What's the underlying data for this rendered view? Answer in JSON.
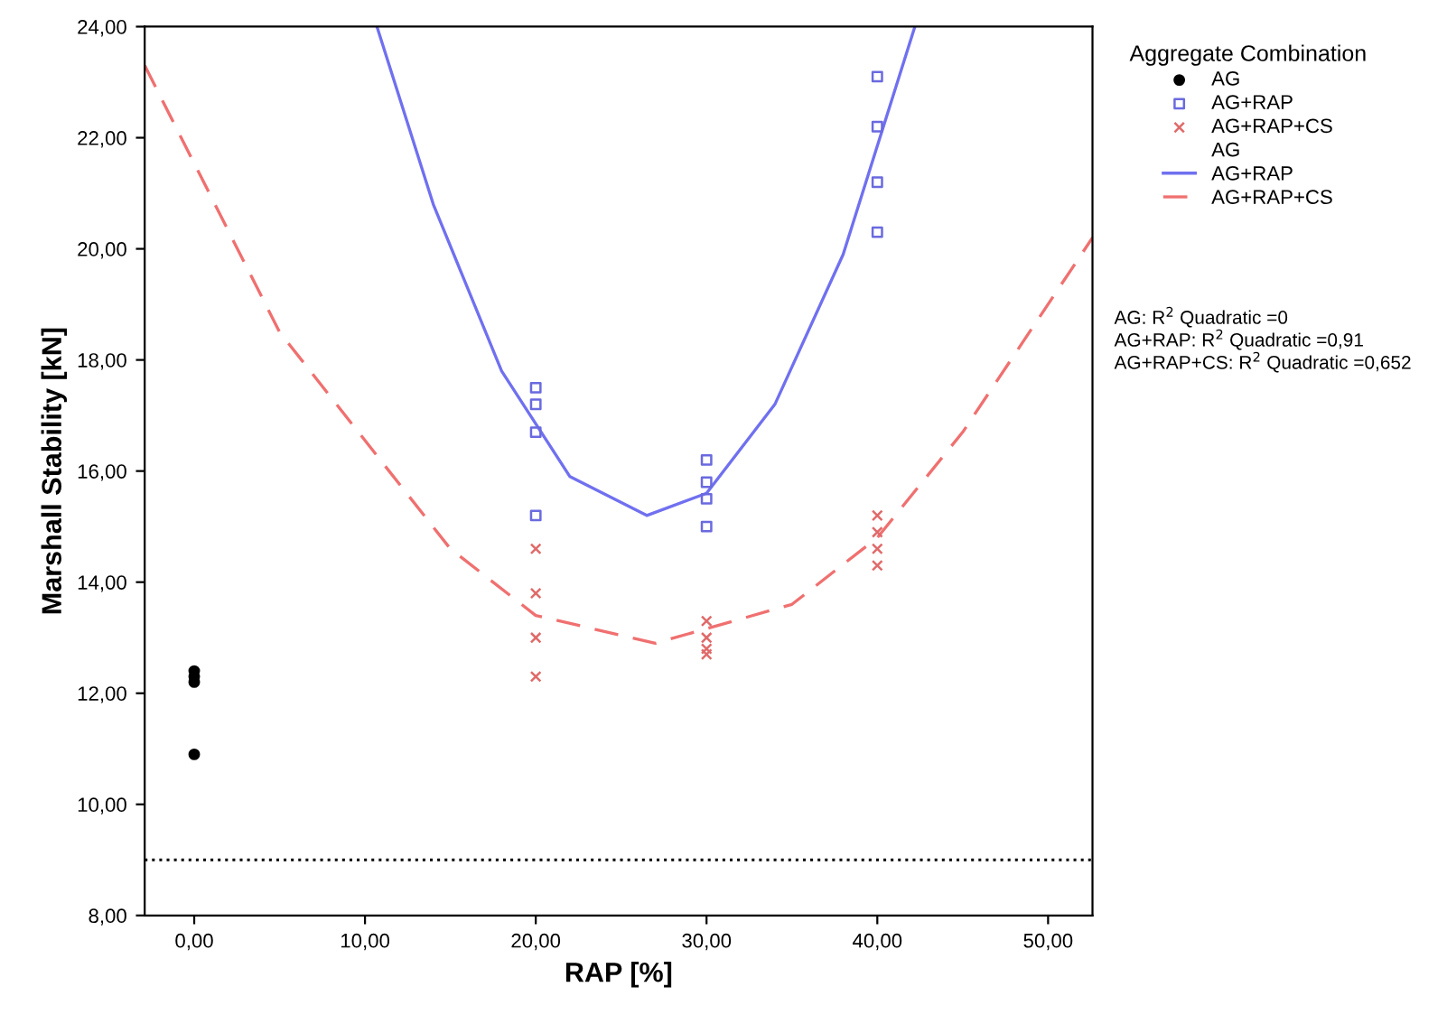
{
  "chart_data": {
    "type": "scatter",
    "xlabel": "RAP [%]",
    "ylabel": "Marshall Stability [kN]",
    "legend_title": "Aggregate Combination",
    "legend": "right",
    "grid": false,
    "xlim": [
      -2.9,
      52.6
    ],
    "ylim": [
      8,
      24
    ],
    "xticks": [
      {
        "value": 0,
        "label": "0,00"
      },
      {
        "value": 10,
        "label": "10,00"
      },
      {
        "value": 20,
        "label": "20,00"
      },
      {
        "value": 30,
        "label": "30,00"
      },
      {
        "value": 40,
        "label": "40,00"
      },
      {
        "value": 50,
        "label": "50,00"
      }
    ],
    "yticks": [
      {
        "value": 8,
        "label": "8,00"
      },
      {
        "value": 10,
        "label": "10,00"
      },
      {
        "value": 12,
        "label": "12,00"
      },
      {
        "value": 14,
        "label": "14,00"
      },
      {
        "value": 16,
        "label": "16,00"
      },
      {
        "value": 18,
        "label": "18,00"
      },
      {
        "value": 20,
        "label": "20,00"
      },
      {
        "value": 22,
        "label": "22,00"
      },
      {
        "value": 24,
        "label": "24,00"
      }
    ],
    "series": [
      {
        "name": "AG",
        "marker": "circle",
        "color": "#000000",
        "x": [
          0,
          0,
          0,
          0
        ],
        "values": [
          12.4,
          12.3,
          12.2,
          10.9
        ]
      },
      {
        "name": "AG+RAP",
        "marker": "square",
        "color": "#6a6ae0",
        "x": [
          20,
          20,
          20,
          20,
          30,
          30,
          30,
          30,
          40,
          40,
          40,
          40
        ],
        "values": [
          17.5,
          17.2,
          16.7,
          15.2,
          16.2,
          15.8,
          15.5,
          15.0,
          23.1,
          22.2,
          21.2,
          20.3
        ]
      },
      {
        "name": "AG+RAP+CS",
        "marker": "cross",
        "color": "#e06a6a",
        "x": [
          20,
          20,
          20,
          20,
          30,
          30,
          30,
          30,
          40,
          40,
          40,
          40
        ],
        "values": [
          14.6,
          13.8,
          13.0,
          12.3,
          13.3,
          13.0,
          12.8,
          12.7,
          15.2,
          14.9,
          14.6,
          14.3
        ]
      },
      {
        "name": "AG",
        "type": "line"
      },
      {
        "name": "AG+RAP",
        "type": "line",
        "line_style": "solid",
        "color": "#7070f0",
        "x": [
          10.7,
          14,
          18,
          22,
          26.5,
          30,
          34,
          38,
          42.2
        ],
        "values": [
          24,
          20.8,
          17.8,
          15.9,
          15.2,
          15.6,
          17.2,
          19.9,
          24
        ]
      },
      {
        "name": "AG+RAP+CS",
        "type": "line",
        "line_style": "dashed",
        "color": "#f07070",
        "x": [
          -2.9,
          5,
          15,
          20,
          27,
          35,
          40,
          45,
          52.6
        ],
        "values": [
          23.3,
          18.5,
          14.6,
          13.4,
          12.9,
          13.6,
          14.8,
          16.7,
          20.2
        ]
      }
    ],
    "ref_lines": [
      {
        "axis": "y",
        "value": 9,
        "color": "#000000",
        "line_style": "dotted"
      }
    ],
    "annotations": [
      "AG: R$^{2}$ Quadratic =0",
      "AG+RAP: R$^{2}$ Quadratic =0,91",
      "AG+RAP+CS: R$^{2}$ Quadratic =0,652"
    ]
  }
}
